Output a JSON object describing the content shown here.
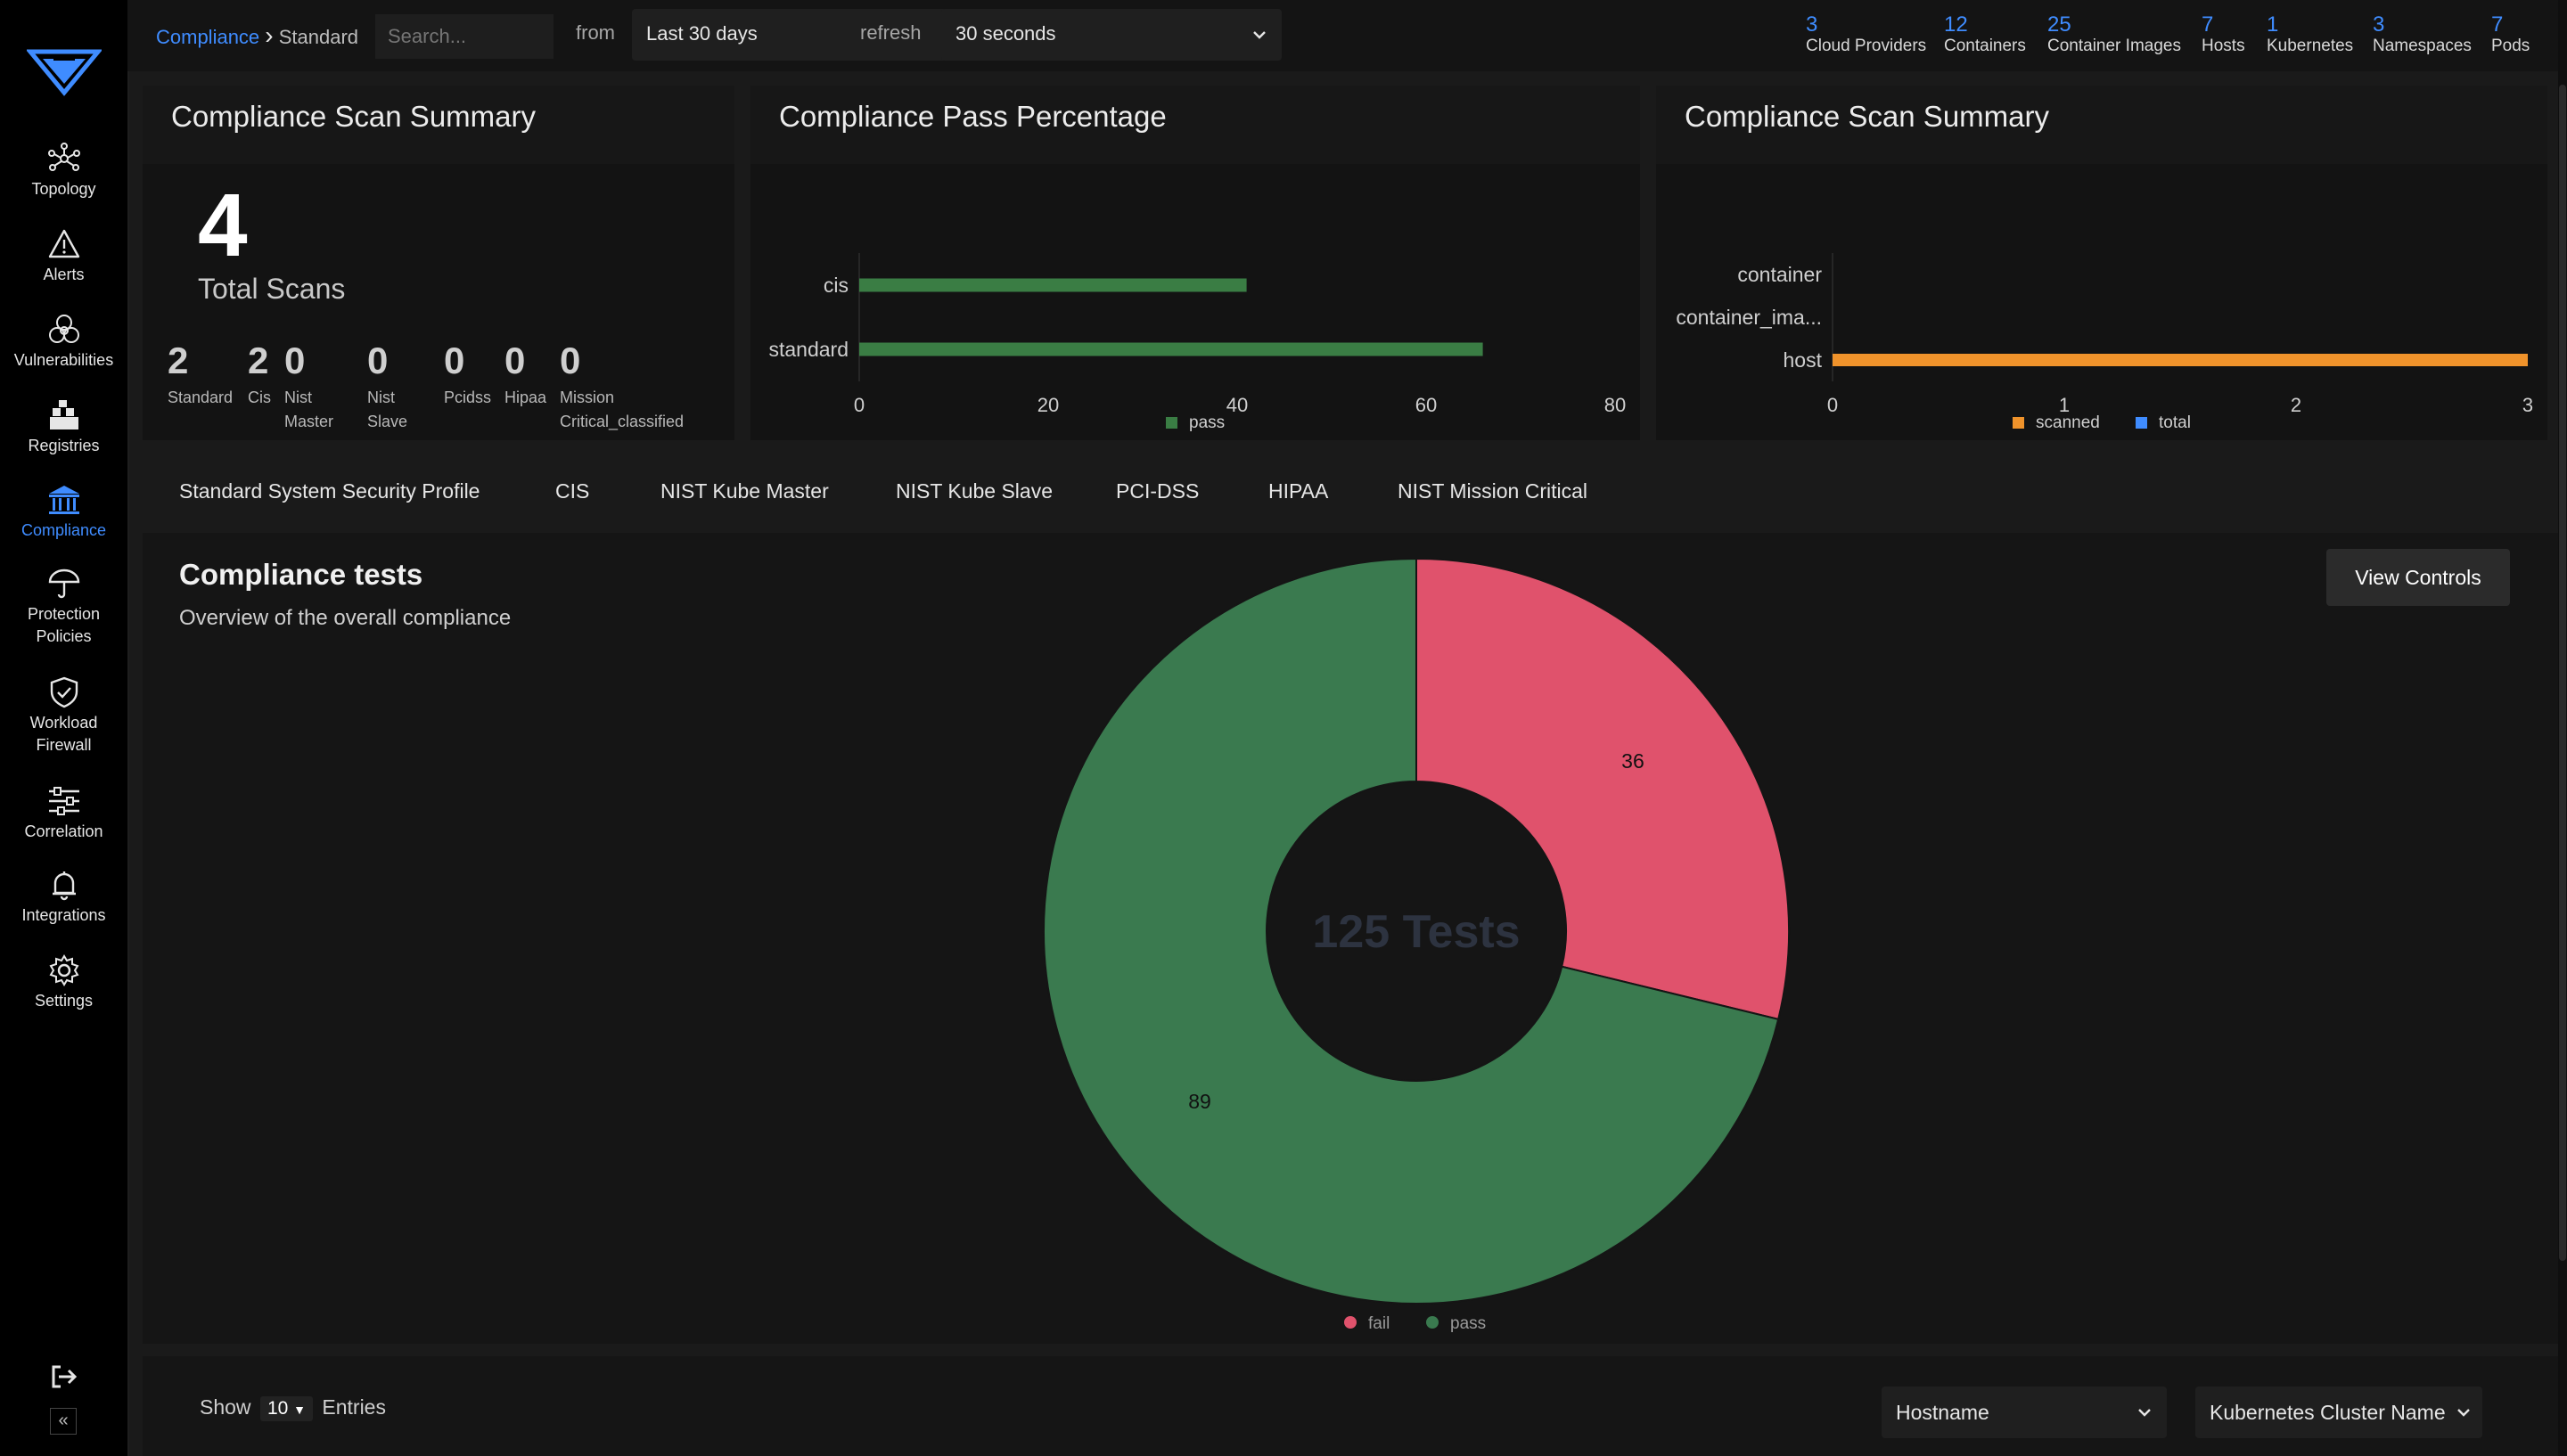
{
  "nav": {
    "items": [
      {
        "label": "Topology",
        "icon": "topology-icon"
      },
      {
        "label": "Alerts",
        "icon": "alert-icon"
      },
      {
        "label": "Vulnerabilities",
        "icon": "biohazard-icon"
      },
      {
        "label": "Registries",
        "icon": "registries-icon"
      },
      {
        "label": "Compliance",
        "icon": "compliance-icon",
        "active": true
      },
      {
        "label": "Protection\nPolicies",
        "icon": "umbrella-icon"
      },
      {
        "label": "Workload\nFirewall",
        "icon": "shield-icon"
      },
      {
        "label": "Correlation",
        "icon": "sliders-icon"
      },
      {
        "label": "Integrations",
        "icon": "bell-icon"
      },
      {
        "label": "Settings",
        "icon": "gear-icon"
      }
    ],
    "labels": {
      "topology": "Topology",
      "alerts": "Alerts",
      "vulnerabilities": "Vulnerabilities",
      "registries": "Registries",
      "compliance": "Compliance",
      "protection1": "Protection",
      "protection2": "Policies",
      "workload1": "Workload",
      "workload2": "Firewall",
      "correlation": "Correlation",
      "integrations": "Integrations",
      "settings": "Settings"
    },
    "collapse_label": "«"
  },
  "topbar": {
    "breadcrumb_link": "Compliance",
    "breadcrumb_sep": "›",
    "breadcrumb_current": "Standard",
    "search_placeholder": "Search...",
    "from_label": "from",
    "range_value": "Last 30 days",
    "refresh_label": "refresh",
    "refresh_value": "30 seconds",
    "stats": [
      {
        "num": "3",
        "cap": "Cloud Providers"
      },
      {
        "num": "12",
        "cap": "Containers"
      },
      {
        "num": "25",
        "cap": "Container Images"
      },
      {
        "num": "7",
        "cap": "Hosts"
      },
      {
        "num": "1",
        "cap": "Kubernetes"
      },
      {
        "num": "3",
        "cap": "Namespaces"
      },
      {
        "num": "7",
        "cap": "Pods"
      }
    ]
  },
  "summary": {
    "title": "Compliance Scan Summary",
    "total": "4",
    "total_caption": "Total Scans",
    "items": [
      {
        "num": "2",
        "cap1": "Standard",
        "cap2": ""
      },
      {
        "num": "2",
        "cap1": "Cis",
        "cap2": ""
      },
      {
        "num": "0",
        "cap1": "Nist",
        "cap2": "Master"
      },
      {
        "num": "0",
        "cap1": "Nist",
        "cap2": "Slave"
      },
      {
        "num": "0",
        "cap1": "Pcidss",
        "cap2": ""
      },
      {
        "num": "0",
        "cap1": "Hipaa",
        "cap2": ""
      },
      {
        "num": "0",
        "cap1": "Mission",
        "cap2": "Critical_classified"
      }
    ]
  },
  "pass_panel": {
    "title": "Compliance Pass Percentage"
  },
  "scan_panel": {
    "title": "Compliance Scan Summary"
  },
  "chart_data": [
    {
      "type": "bar",
      "orientation": "horizontal",
      "title": "Compliance Pass Percentage",
      "categories": [
        "cis",
        "standard"
      ],
      "series": [
        {
          "name": "pass",
          "values": [
            41,
            66
          ]
        }
      ],
      "xlim": [
        0,
        80
      ],
      "xticks": [
        "0",
        "20",
        "40",
        "60",
        "80"
      ],
      "color": "#3a7d44",
      "legend": "bottom"
    },
    {
      "type": "bar",
      "orientation": "horizontal",
      "title": "Compliance Scan Summary",
      "categories": [
        "container",
        "container_ima...",
        "host"
      ],
      "series": [
        {
          "name": "scanned",
          "values": [
            0,
            0,
            3
          ],
          "color": "#f0932b"
        },
        {
          "name": "total",
          "values": [
            0,
            0,
            0
          ],
          "color": "#3f8cff"
        }
      ],
      "xlim": [
        0,
        3
      ],
      "xticks": [
        "0",
        "1",
        "2",
        "3"
      ],
      "legend": "bottom"
    },
    {
      "type": "pie",
      "donut": true,
      "center_label": "125 Tests",
      "series": [
        {
          "name": "fail",
          "value": 36,
          "color": "#e0526c"
        },
        {
          "name": "pass",
          "value": 89,
          "color": "#3a7a4f"
        }
      ],
      "legend": "bottom"
    }
  ],
  "tabs": [
    {
      "label": "Standard System Security Profile",
      "active": true
    },
    {
      "label": "CIS"
    },
    {
      "label": "NIST Kube Master"
    },
    {
      "label": "NIST Kube Slave"
    },
    {
      "label": "PCI-DSS"
    },
    {
      "label": "HIPAA"
    },
    {
      "label": "NIST Mission Critical"
    }
  ],
  "main": {
    "title": "Compliance tests",
    "subtitle": "Overview of the overall compliance",
    "view_controls": "View Controls"
  },
  "footer": {
    "show_label": "Show",
    "entries_value": "10",
    "entries_label": "Entries",
    "hostname_placeholder": "Hostname",
    "cluster_placeholder": "Kubernetes Cluster Name"
  }
}
